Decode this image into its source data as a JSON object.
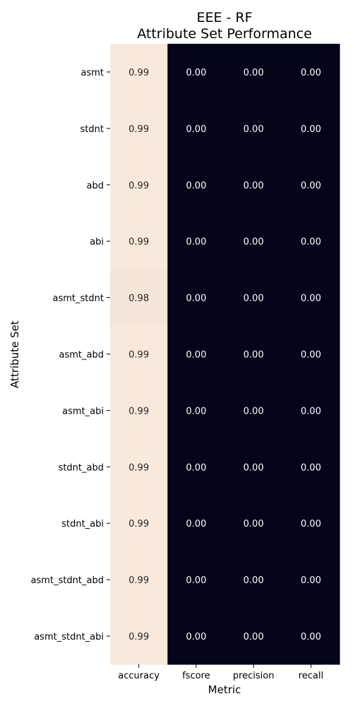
{
  "chart_data": {
    "type": "heatmap",
    "title_lines": [
      "EEE - RF",
      "Attribute Set Performance"
    ],
    "xlabel": "Metric",
    "ylabel": "Attribute Set",
    "columns": [
      "accuracy",
      "fscore",
      "precision",
      "recall"
    ],
    "rows": [
      "asmt",
      "stdnt",
      "abd",
      "abi",
      "asmt_stdnt",
      "asmt_abd",
      "asmt_abi",
      "stdnt_abd",
      "stdnt_abi",
      "asmt_stdnt_abd",
      "asmt_stdnt_abi"
    ],
    "values": [
      [
        0.99,
        0.0,
        0.0,
        0.0
      ],
      [
        0.99,
        0.0,
        0.0,
        0.0
      ],
      [
        0.99,
        0.0,
        0.0,
        0.0
      ],
      [
        0.99,
        0.0,
        0.0,
        0.0
      ],
      [
        0.98,
        0.0,
        0.0,
        0.0
      ],
      [
        0.99,
        0.0,
        0.0,
        0.0
      ],
      [
        0.99,
        0.0,
        0.0,
        0.0
      ],
      [
        0.99,
        0.0,
        0.0,
        0.0
      ],
      [
        0.99,
        0.0,
        0.0,
        0.0
      ],
      [
        0.99,
        0.0,
        0.0,
        0.0
      ],
      [
        0.99,
        0.0,
        0.0,
        0.0
      ]
    ],
    "value_range": [
      0,
      1
    ],
    "colormap": {
      "low": "#03051a",
      "high": "#faebdd"
    },
    "annotation_colors": {
      "on_dark": "#ffffff",
      "on_light": "#262626"
    },
    "colorbar": false,
    "grid": false
  }
}
